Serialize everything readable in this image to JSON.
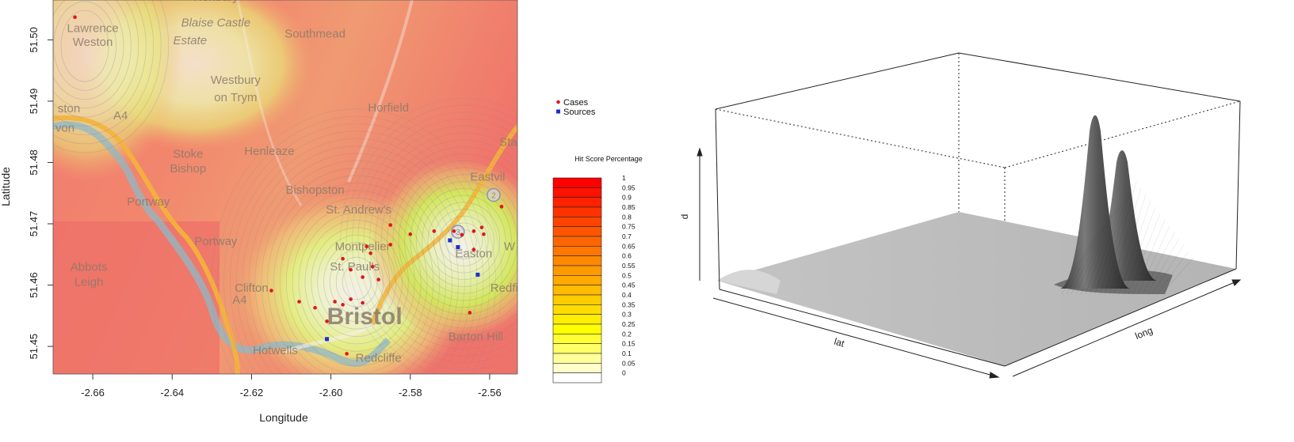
{
  "chart_data": [
    {
      "type": "scatter",
      "xlabel": "Longitude",
      "ylabel": "Latitude",
      "xlim": [
        -2.67,
        -2.553
      ],
      "ylim": [
        51.4455,
        51.5065
      ],
      "xticks": [
        -2.66,
        -2.64,
        -2.62,
        -2.6,
        -2.58,
        -2.56
      ],
      "xtick_labels": [
        "-2.66",
        "-2.64",
        "-2.62",
        "-2.60",
        "-2.58",
        "-2.56"
      ],
      "yticks": [
        51.45,
        51.46,
        51.47,
        51.48,
        51.49,
        51.5
      ],
      "ytick_labels": [
        "51.45",
        "51.46",
        "51.47",
        "51.48",
        "51.49",
        "51.50"
      ],
      "legend_position": "right",
      "series": [
        {
          "name": "Cases",
          "color": "#e0161b",
          "marker": "circle",
          "points": [
            [
              -2.6645,
              51.5037
            ],
            [
              -2.615,
              51.4591
            ],
            [
              -2.608,
              51.4573
            ],
            [
              -2.604,
              51.4563
            ],
            [
              -2.601,
              51.4541
            ],
            [
              -2.599,
              51.4573
            ],
            [
              -2.597,
              51.4568
            ],
            [
              -2.595,
              51.4577
            ],
            [
              -2.592,
              51.4571
            ],
            [
              -2.588,
              51.4609
            ],
            [
              -2.5895,
              51.463
            ],
            [
              -2.59,
              51.4652
            ],
            [
              -2.591,
              51.4663
            ],
            [
              -2.597,
              51.4643
            ],
            [
              -2.592,
              51.4613
            ],
            [
              -2.595,
              51.4625
            ],
            [
              -2.585,
              51.4698
            ],
            [
              -2.585,
              51.4666
            ],
            [
              -2.58,
              51.4683
            ],
            [
              -2.574,
              51.4688
            ],
            [
              -2.569,
              51.4688
            ],
            [
              -2.567,
              51.4682
            ],
            [
              -2.564,
              51.4688
            ],
            [
              -2.562,
              51.4694
            ],
            [
              -2.5615,
              51.4683
            ],
            [
              -2.564,
              51.4658
            ],
            [
              -2.565,
              51.4555
            ],
            [
              -2.557,
              51.4728
            ],
            [
              -2.596,
              51.4488
            ]
          ]
        },
        {
          "name": "Sources",
          "color": "#1a2fd0",
          "marker": "square",
          "points": [
            [
              -2.601,
              51.4512
            ],
            [
              -2.57,
              51.4673
            ],
            [
              -2.568,
              51.4662
            ],
            [
              -2.563,
              51.4617
            ]
          ]
        }
      ],
      "map_labels": [
        {
          "text": "Henbury",
          "lon": -2.629,
          "lat": 51.5064,
          "italic": false
        },
        {
          "text": "Lawrence",
          "lon": -2.66,
          "lat": 51.5013,
          "italic": false
        },
        {
          "text": "Weston",
          "lon": -2.66,
          "lat": 51.499,
          "italic": false
        },
        {
          "text": "Blaise Castle",
          "lon": -2.629,
          "lat": 51.5022,
          "italic": true
        },
        {
          "text": "Estate",
          "lon": -2.6355,
          "lat": 51.4993,
          "italic": true
        },
        {
          "text": "Southmead",
          "lon": -2.604,
          "lat": 51.5004,
          "italic": false
        },
        {
          "text": "Westbury",
          "lon": -2.624,
          "lat": 51.4928,
          "italic": false
        },
        {
          "text": "on Trym",
          "lon": -2.624,
          "lat": 51.49,
          "italic": false
        },
        {
          "text": "Horfield",
          "lon": -2.5855,
          "lat": 51.4883,
          "italic": false
        },
        {
          "text": "Henleaze",
          "lon": -2.6155,
          "lat": 51.4812,
          "italic": false
        },
        {
          "text": "Stoke",
          "lon": -2.636,
          "lat": 51.4808,
          "italic": false
        },
        {
          "text": "Bishop",
          "lon": -2.636,
          "lat": 51.4784,
          "italic": false
        },
        {
          "text": "Bishopston",
          "lon": -2.604,
          "lat": 51.4749,
          "italic": false
        },
        {
          "text": "St. Andrew's",
          "lon": -2.593,
          "lat": 51.4717,
          "italic": false
        },
        {
          "text": "Montpelier",
          "lon": -2.592,
          "lat": 51.4657,
          "italic": false
        },
        {
          "text": "St. Paul's",
          "lon": -2.594,
          "lat": 51.4624,
          "italic": false
        },
        {
          "text": "Easton",
          "lon": -2.564,
          "lat": 51.4645,
          "italic": false
        },
        {
          "text": "Eastvil",
          "lon": -2.5605,
          "lat": 51.477,
          "italic": false
        },
        {
          "text": "Sta",
          "lon": -2.5553,
          "lat": 51.4827,
          "italic": false
        },
        {
          "text": "Redfie",
          "lon": -2.5555,
          "lat": 51.4589,
          "italic": false
        },
        {
          "text": "Abbots",
          "lon": -2.661,
          "lat": 51.4623,
          "italic": false
        },
        {
          "text": "Leigh",
          "lon": -2.661,
          "lat": 51.4599,
          "italic": false
        },
        {
          "text": "Clifton",
          "lon": -2.62,
          "lat": 51.4589,
          "italic": false
        },
        {
          "text": "Bristol",
          "lon": -2.5915,
          "lat": 51.4536,
          "italic": false
        },
        {
          "text": "Barton Hill",
          "lon": -2.5635,
          "lat": 51.451,
          "italic": false
        },
        {
          "text": "Hotwells",
          "lon": -2.614,
          "lat": 51.4487,
          "italic": false
        },
        {
          "text": "Redcliffe",
          "lon": -2.588,
          "lat": 51.4475,
          "italic": false
        },
        {
          "text": "A4",
          "lon": -2.653,
          "lat": 51.487,
          "italic": false
        },
        {
          "text": "Portway",
          "lon": -2.646,
          "lat": 51.473,
          "italic": false
        },
        {
          "text": "Portway",
          "lon": -2.629,
          "lat": 51.4665,
          "italic": false
        },
        {
          "text": "A4",
          "lon": -2.623,
          "lat": 51.457,
          "italic": false
        },
        {
          "text": "ston",
          "lon": -2.666,
          "lat": 51.4882,
          "italic": false
        },
        {
          "text": "von",
          "lon": -2.667,
          "lat": 51.485,
          "italic": false
        },
        {
          "text": "W",
          "lon": -2.555,
          "lat": 51.4657,
          "italic": false
        }
      ],
      "map_markers": [
        {
          "text": "2",
          "lon": -2.559,
          "lat": 51.4747
        },
        {
          "text": "3",
          "lon": -2.568,
          "lat": 51.4687
        }
      ]
    },
    {
      "type": "heatmap-legend",
      "title": "Hit Score Percentage",
      "levels": [
        "1",
        "0.95",
        "0.9",
        "0.85",
        "0.8",
        "0.75",
        "0.7",
        "0.65",
        "0.6",
        "0.55",
        "0.5",
        "0.45",
        "0.4",
        "0.35",
        "0.3",
        "0.25",
        "0.2",
        "0.15",
        "0.1",
        "0.05",
        "0"
      ],
      "colors": [
        "#ff0000",
        "#ff1100",
        "#ff2200",
        "#ff3300",
        "#ff4400",
        "#ff5500",
        "#ff6600",
        "#ff7700",
        "#ff8800",
        "#ff9900",
        "#ffaa00",
        "#ffbb00",
        "#ffcc00",
        "#ffdd00",
        "#ffee00",
        "#ffff00",
        "#ffff33",
        "#ffff66",
        "#ffff99",
        "#ffffcc",
        "#ffffff"
      ]
    },
    {
      "type": "surface",
      "xlabel": "lat",
      "ylabel": "long",
      "zlabel": "d"
    }
  ]
}
